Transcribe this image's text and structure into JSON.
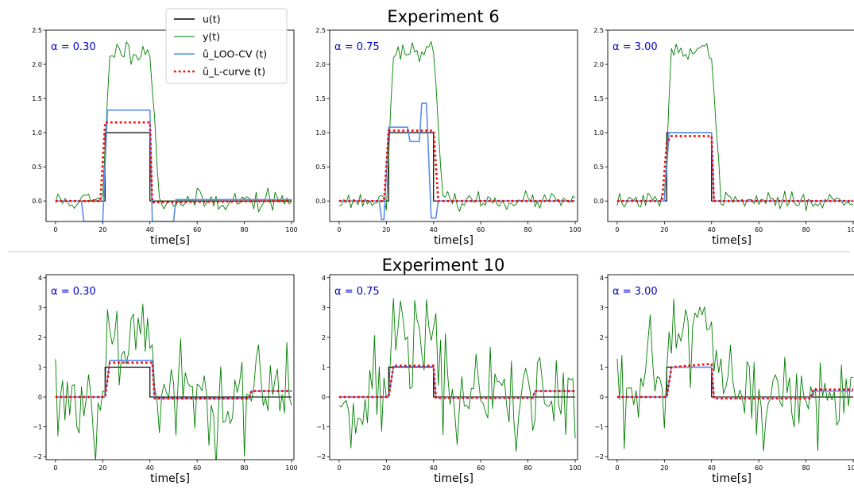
{
  "figure": {
    "experiments": [
      {
        "title": "Experiment 6",
        "ylim": [
          -0.3,
          2.5
        ],
        "yticks": [
          0.0,
          0.5,
          1.0,
          1.5,
          2.0,
          2.5
        ],
        "ytick_labels": [
          "0.0",
          "0.5",
          "1.0",
          "1.5",
          "2.0",
          "2.5"
        ]
      },
      {
        "title": "Experiment 10",
        "ylim": [
          -2.1,
          4.1
        ],
        "yticks": [
          -2,
          -1,
          0,
          1,
          2,
          3,
          4
        ],
        "ytick_labels": [
          "−2",
          "−1",
          "0",
          "1",
          "2",
          "3",
          "4"
        ]
      }
    ],
    "xticks": [
      0,
      20,
      40,
      60,
      80,
      100
    ],
    "xtick_labels": [
      "0",
      "20",
      "40",
      "60",
      "80",
      "100"
    ],
    "xlim": [
      -4,
      101
    ],
    "xlabel": "time[s]",
    "legend": {
      "placement": "top-left of first panel",
      "entries": [
        "u(t)",
        "y(t)",
        "û_LOO-CV (t)",
        "û_L-curve (t)"
      ]
    },
    "colors": {
      "u": "#000000",
      "y": "#008000",
      "loo": "#5b8def",
      "lcurve": "#ff0000",
      "alpha_text": "#0000cc"
    }
  },
  "chart_data": [
    {
      "type": "line",
      "experiment": "Experiment 6",
      "alpha_label": "α = 0.30",
      "xlabel": "time[s]",
      "ylim": [
        -0.3,
        2.5
      ],
      "series": [
        {
          "name": "u(t)",
          "points": [
            [
              0,
              0
            ],
            [
              21,
              0
            ],
            [
              21,
              1
            ],
            [
              40,
              1
            ],
            [
              40,
              0
            ],
            [
              100,
              0
            ]
          ]
        },
        {
          "name": "y(t)",
          "kind": "noisy_response",
          "noise_sd": 0.08,
          "plateau": 2.2,
          "rise_start": 20,
          "rise_end": 23,
          "fall_start": 40,
          "fall_end": 44
        },
        {
          "name": "û_LOO-CV (t)",
          "points": [
            [
              0,
              0
            ],
            [
              11,
              0
            ],
            [
              12,
              -0.3
            ],
            [
              20,
              -0.3
            ],
            [
              22,
              1.33
            ],
            [
              40,
              1.33
            ],
            [
              41,
              -0.3
            ],
            [
              50,
              -0.3
            ],
            [
              51,
              0.02
            ],
            [
              100,
              0.02
            ]
          ]
        },
        {
          "name": "û_L-curve (t)",
          "points": [
            [
              0,
              0
            ],
            [
              19,
              0
            ],
            [
              21,
              1.15
            ],
            [
              40,
              1.15
            ],
            [
              41,
              -0.02
            ],
            [
              100,
              0.0
            ]
          ]
        }
      ]
    },
    {
      "type": "line",
      "experiment": "Experiment 6",
      "alpha_label": "α = 0.75",
      "xlabel": "time[s]",
      "ylim": [
        -0.3,
        2.5
      ],
      "series": [
        {
          "name": "u(t)",
          "points": [
            [
              0,
              0
            ],
            [
              21,
              0
            ],
            [
              21,
              1
            ],
            [
              40,
              1
            ],
            [
              40,
              0
            ],
            [
              100,
              0
            ]
          ]
        },
        {
          "name": "y(t)",
          "kind": "noisy_response",
          "noise_sd": 0.06,
          "plateau": 2.2,
          "rise_start": 20,
          "rise_end": 23,
          "fall_start": 40,
          "fall_end": 44
        },
        {
          "name": "û_LOO-CV (t)",
          "points": [
            [
              0,
              0
            ],
            [
              17,
              0
            ],
            [
              18,
              -0.27
            ],
            [
              19,
              -0.27
            ],
            [
              21,
              1.08
            ],
            [
              29,
              1.08
            ],
            [
              30,
              0.87
            ],
            [
              34,
              0.87
            ],
            [
              35,
              1.43
            ],
            [
              37,
              1.43
            ],
            [
              39,
              -0.25
            ],
            [
              41,
              -0.25
            ],
            [
              42,
              0.0
            ],
            [
              100,
              0.0
            ]
          ]
        },
        {
          "name": "û_L-curve (t)",
          "points": [
            [
              0,
              0
            ],
            [
              19,
              0
            ],
            [
              21,
              1.03
            ],
            [
              40,
              1.03
            ],
            [
              42,
              0
            ],
            [
              100,
              0.0
            ]
          ]
        }
      ]
    },
    {
      "type": "line",
      "experiment": "Experiment 6",
      "alpha_label": "α = 3.00",
      "xlabel": "time[s]",
      "ylim": [
        -0.3,
        2.5
      ],
      "series": [
        {
          "name": "u(t)",
          "points": [
            [
              0,
              0
            ],
            [
              21,
              0
            ],
            [
              21,
              1
            ],
            [
              40,
              1
            ],
            [
              40,
              0
            ],
            [
              100,
              0
            ]
          ]
        },
        {
          "name": "y(t)",
          "kind": "noisy_response",
          "noise_sd": 0.06,
          "plateau": 2.2,
          "rise_start": 20,
          "rise_end": 23,
          "fall_start": 40,
          "fall_end": 44
        },
        {
          "name": "û_LOO-CV (t)",
          "points": [
            [
              0,
              0
            ],
            [
              20,
              0
            ],
            [
              22,
              1.0
            ],
            [
              40,
              1.0
            ],
            [
              41,
              0.0
            ],
            [
              100,
              0.0
            ]
          ]
        },
        {
          "name": "û_L-curve (t)",
          "points": [
            [
              0,
              0
            ],
            [
              19,
              0
            ],
            [
              21,
              0.85
            ],
            [
              23,
              0.95
            ],
            [
              40,
              0.95
            ],
            [
              41,
              0.0
            ],
            [
              100,
              0.0
            ]
          ]
        }
      ]
    },
    {
      "type": "line",
      "experiment": "Experiment 10",
      "alpha_label": "α = 0.30",
      "xlabel": "time[s]",
      "ylim": [
        -2.1,
        4.1
      ],
      "series": [
        {
          "name": "u(t)",
          "points": [
            [
              0,
              0
            ],
            [
              21,
              0
            ],
            [
              21,
              1
            ],
            [
              40,
              1
            ],
            [
              40,
              0
            ],
            [
              100,
              0
            ]
          ]
        },
        {
          "name": "y(t)",
          "kind": "noisy_response",
          "noise_sd": 0.9,
          "plateau": 2.2,
          "rise_start": 20,
          "rise_end": 23,
          "fall_start": 40,
          "fall_end": 44
        },
        {
          "name": "û_LOO-CV (t)",
          "points": [
            [
              0,
              0
            ],
            [
              21,
              0
            ],
            [
              23,
              1.22
            ],
            [
              41,
              1.22
            ],
            [
              42,
              -0.06
            ],
            [
              82,
              -0.06
            ],
            [
              83,
              0.2
            ],
            [
              100,
              0.2
            ]
          ]
        },
        {
          "name": "û_L-curve (t)",
          "points": [
            [
              0,
              0
            ],
            [
              21,
              0
            ],
            [
              23,
              1.15
            ],
            [
              41,
              1.15
            ],
            [
              42,
              -0.05
            ],
            [
              82,
              -0.05
            ],
            [
              83,
              0.2
            ],
            [
              100,
              0.2
            ]
          ]
        }
      ]
    },
    {
      "type": "line",
      "experiment": "Experiment 10",
      "alpha_label": "α = 0.75",
      "xlabel": "time[s]",
      "ylim": [
        -2.1,
        4.1
      ],
      "series": [
        {
          "name": "u(t)",
          "points": [
            [
              0,
              0
            ],
            [
              21,
              0
            ],
            [
              21,
              1
            ],
            [
              40,
              1
            ],
            [
              40,
              0
            ],
            [
              100,
              0
            ]
          ]
        },
        {
          "name": "y(t)",
          "kind": "noisy_response",
          "noise_sd": 0.9,
          "plateau": 2.2,
          "rise_start": 20,
          "rise_end": 23,
          "fall_start": 40,
          "fall_end": 44
        },
        {
          "name": "û_LOO-CV (t)",
          "points": [
            [
              0,
              0
            ],
            [
              21,
              0
            ],
            [
              23,
              1.02
            ],
            [
              40,
              1.02
            ],
            [
              41,
              -0.02
            ],
            [
              82,
              -0.02
            ],
            [
              83,
              0.2
            ],
            [
              100,
              0.2
            ]
          ]
        },
        {
          "name": "û_L-curve (t)",
          "points": [
            [
              0,
              0
            ],
            [
              21,
              0
            ],
            [
              23,
              1.05
            ],
            [
              40,
              1.05
            ],
            [
              41,
              -0.03
            ],
            [
              82,
              -0.03
            ],
            [
              83,
              0.2
            ],
            [
              100,
              0.2
            ]
          ]
        }
      ]
    },
    {
      "type": "line",
      "experiment": "Experiment 10",
      "alpha_label": "α = 3.00",
      "xlabel": "time[s]",
      "ylim": [
        -2.1,
        4.1
      ],
      "series": [
        {
          "name": "u(t)",
          "points": [
            [
              0,
              0
            ],
            [
              21,
              0
            ],
            [
              21,
              1
            ],
            [
              40,
              1
            ],
            [
              40,
              0
            ],
            [
              100,
              0
            ]
          ]
        },
        {
          "name": "y(t)",
          "kind": "noisy_response",
          "noise_sd": 0.9,
          "plateau": 2.2,
          "rise_start": 20,
          "rise_end": 23,
          "fall_start": 40,
          "fall_end": 44
        },
        {
          "name": "û_LOO-CV (t)",
          "points": [
            [
              0,
              0
            ],
            [
              21,
              0
            ],
            [
              23,
              1.0
            ],
            [
              40,
              1.0
            ],
            [
              41,
              -0.02
            ],
            [
              82,
              -0.02
            ],
            [
              83,
              0.2
            ],
            [
              100,
              0.2
            ]
          ]
        },
        {
          "name": "û_L-curve (t)",
          "points": [
            [
              0,
              0
            ],
            [
              21,
              0
            ],
            [
              23,
              1.0
            ],
            [
              38,
              1.1
            ],
            [
              40,
              1.1
            ],
            [
              41,
              -0.05
            ],
            [
              82,
              -0.05
            ],
            [
              83,
              0.25
            ],
            [
              100,
              0.25
            ]
          ]
        }
      ]
    }
  ]
}
